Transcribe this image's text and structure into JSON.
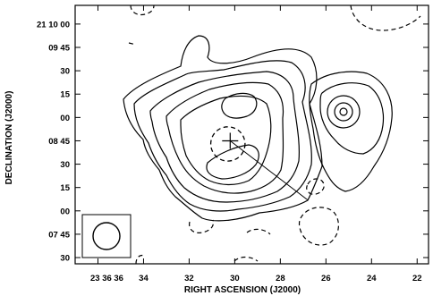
{
  "chart_data": {
    "type": "contour",
    "xlabel": "RIGHT ASCENSION (J2000)",
    "ylabel": "DECLINATION (J2000)",
    "x_ticks": [
      "23 36 36",
      "34",
      "32",
      "30",
      "28",
      "26",
      "24",
      "22"
    ],
    "y_ticks": [
      "21 10 00",
      "09 45",
      "30",
      "15",
      "00",
      "08 45",
      "30",
      "15",
      "00",
      "07 45",
      "30"
    ],
    "x_tick_values_s": [
      36,
      34,
      32,
      30,
      28,
      26,
      24,
      22
    ],
    "y_tick_values_arcsec": [
      600,
      585,
      570,
      555,
      540,
      525,
      510,
      495,
      480,
      465,
      450
    ],
    "xlim_s": [
      37,
      21.5
    ],
    "ylim_arcsec": [
      446,
      612
    ],
    "contour_levels": [
      "negative (dashed)",
      "positive (solid) x6"
    ],
    "markers": [
      {
        "kind": "cross",
        "ra_s": 30.2,
        "dec_arcsec": 525
      },
      {
        "kind": "dashed-circle",
        "ra_s": 30.3,
        "dec_arcsec": 523,
        "radius_arcsec": 11
      }
    ],
    "vector": {
      "from_ra_s": 30.2,
      "from_dec_arcsec": 525,
      "to_ra_s": 26.8,
      "to_dec_arcsec": 487
    },
    "beam": "circle, lower-left",
    "grid": false
  }
}
